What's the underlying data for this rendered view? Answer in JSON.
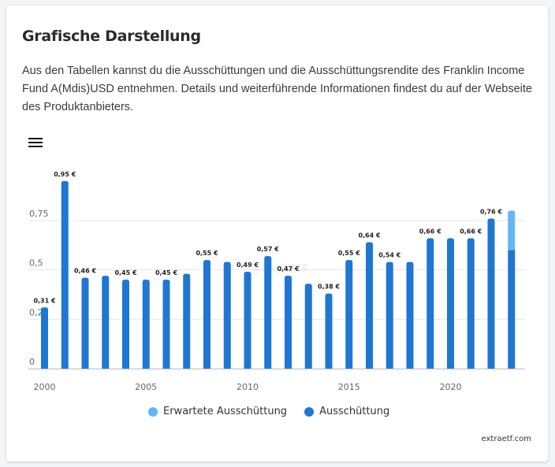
{
  "card": {
    "title": "Grafische Darstellung",
    "description": "Aus den Tabellen kannst du die Ausschüttungen und die Ausschüttungsrendite des Franklin Income Fund A(Mdis)USD entnehmen. Details und weiterführende Informationen findest du auf der Webseite des Produktanbieters."
  },
  "menu": {
    "icon": "hamburger-menu-icon"
  },
  "colors": {
    "actual": "#1f77d2",
    "expected": "#64b5f6",
    "grid": "#e6e6e6",
    "axis": "#bbbbbb"
  },
  "legend": [
    {
      "label": "Erwartete Ausschüttung",
      "color": "#64b5f6"
    },
    {
      "label": "Ausschüttung",
      "color": "#1f77d2"
    }
  ],
  "credit": "extraetf.com",
  "watermark": "extraETF",
  "chart_data": {
    "type": "bar",
    "title": "",
    "xlabel": "",
    "ylabel": "",
    "ylim": [
      0,
      0.95
    ],
    "y_ticks": [
      0,
      0.25,
      0.5,
      0.75
    ],
    "y_tick_labels": [
      "0",
      "0,25",
      "0,5",
      "0,75"
    ],
    "x_ticks": [
      2000,
      2005,
      2010,
      2015,
      2020
    ],
    "grid": true,
    "legend_position": "bottom-center",
    "stacked": true,
    "categories": [
      2000,
      2001,
      2002,
      2003,
      2004,
      2005,
      2006,
      2007,
      2008,
      2009,
      2010,
      2011,
      2012,
      2013,
      2014,
      2015,
      2016,
      2017,
      2018,
      2019,
      2020,
      2021,
      2022,
      2023
    ],
    "series": [
      {
        "name": "Ausschüttung",
        "values": [
          0.31,
          0.95,
          0.46,
          0.47,
          0.45,
          0.45,
          0.45,
          0.48,
          0.55,
          0.54,
          0.49,
          0.57,
          0.47,
          0.43,
          0.38,
          0.55,
          0.64,
          0.54,
          0.54,
          0.66,
          0.66,
          0.66,
          0.76,
          0.6
        ]
      },
      {
        "name": "Erwartete Ausschüttung",
        "values": [
          0,
          0,
          0,
          0,
          0,
          0,
          0,
          0,
          0,
          0,
          0,
          0,
          0,
          0,
          0,
          0,
          0,
          0,
          0,
          0,
          0,
          0,
          0,
          0.2
        ]
      }
    ],
    "data_labels": [
      {
        "year": 2000,
        "text": "0,31 €"
      },
      {
        "year": 2001,
        "text": "0,95 €"
      },
      {
        "year": 2002,
        "text": "0,46 €"
      },
      {
        "year": 2004,
        "text": "0,45 €"
      },
      {
        "year": 2006,
        "text": "0,45 €"
      },
      {
        "year": 2008,
        "text": "0,55 €"
      },
      {
        "year": 2010,
        "text": "0,49 €"
      },
      {
        "year": 2011,
        "text": "0,57 €"
      },
      {
        "year": 2012,
        "text": "0,47 €"
      },
      {
        "year": 2014,
        "text": "0,38 €"
      },
      {
        "year": 2015,
        "text": "0,55 €"
      },
      {
        "year": 2016,
        "text": "0,64 €"
      },
      {
        "year": 2017,
        "text": "0,54 €"
      },
      {
        "year": 2019,
        "text": "0,66 €"
      },
      {
        "year": 2021,
        "text": "0,66 €"
      },
      {
        "year": 2022,
        "text": "0,76 €"
      }
    ]
  }
}
